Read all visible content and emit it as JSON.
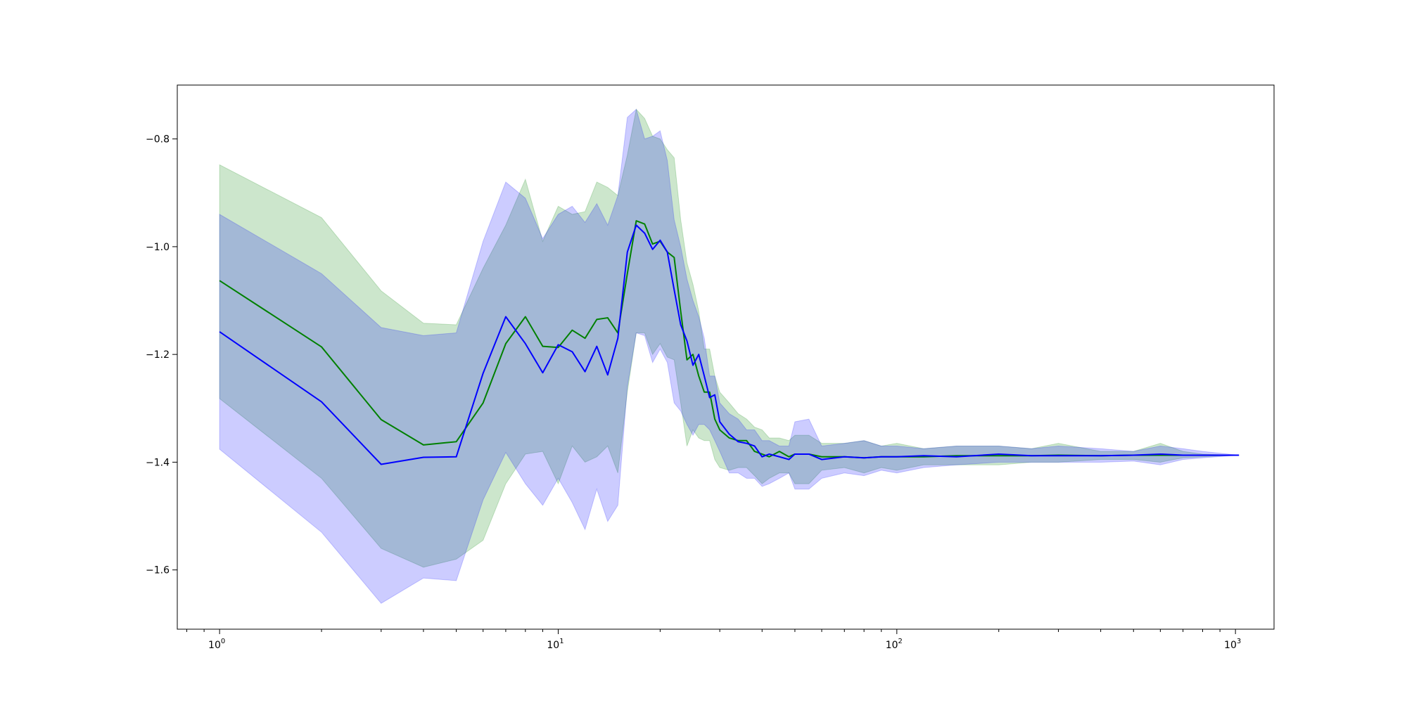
{
  "chart_data": {
    "type": "line",
    "x_scale": "log",
    "xlim": [
      0.75,
      1300
    ],
    "ylim": [
      -1.71,
      -0.7
    ],
    "grid": false,
    "x_ticks": [
      {
        "value": 1,
        "base": "10",
        "exp": "0"
      },
      {
        "value": 10,
        "base": "10",
        "exp": "1"
      },
      {
        "value": 100,
        "base": "10",
        "exp": "2"
      },
      {
        "value": 1000,
        "base": "10",
        "exp": "3"
      }
    ],
    "y_ticks": [
      {
        "value": -0.8,
        "label": "−0.8"
      },
      {
        "value": -1.0,
        "label": "−1.0"
      },
      {
        "value": -1.2,
        "label": "−1.2"
      },
      {
        "value": -1.4,
        "label": "−1.4"
      },
      {
        "value": -1.6,
        "label": "−1.6"
      }
    ],
    "series": [
      {
        "color": "#008000",
        "band_color": "#008000",
        "band_opacity": 0.2,
        "x": [
          1,
          2,
          3,
          4,
          5,
          6,
          7,
          8,
          9,
          10,
          11,
          12,
          13,
          14,
          15,
          16,
          17,
          18,
          19,
          20,
          21,
          22,
          23,
          24,
          25,
          26,
          27,
          28,
          29,
          30,
          32,
          34,
          36,
          38,
          40,
          42,
          45,
          48,
          50,
          55,
          60,
          70,
          80,
          90,
          100,
          120,
          150,
          200,
          250,
          300,
          400,
          500,
          600,
          700,
          800,
          1024
        ],
        "y": [
          -1.063,
          -1.186,
          -1.321,
          -1.368,
          -1.362,
          -1.29,
          -1.18,
          -1.13,
          -1.185,
          -1.187,
          -1.155,
          -1.17,
          -1.135,
          -1.132,
          -1.16,
          -1.05,
          -0.952,
          -0.958,
          -0.995,
          -0.99,
          -1.01,
          -1.02,
          -1.12,
          -1.21,
          -1.2,
          -1.24,
          -1.27,
          -1.27,
          -1.32,
          -1.34,
          -1.355,
          -1.36,
          -1.36,
          -1.38,
          -1.385,
          -1.39,
          -1.38,
          -1.39,
          -1.385,
          -1.385,
          -1.39,
          -1.39,
          -1.392,
          -1.39,
          -1.39,
          -1.39,
          -1.388,
          -1.388,
          -1.388,
          -1.387,
          -1.388,
          -1.387,
          -1.387,
          -1.387,
          -1.387,
          -1.387
        ],
        "upper": [
          -0.848,
          -0.946,
          -1.082,
          -1.142,
          -1.145,
          -1.04,
          -0.96,
          -0.875,
          -0.99,
          -0.925,
          -0.94,
          -0.935,
          -0.88,
          -0.89,
          -0.905,
          -0.83,
          -0.745,
          -0.762,
          -0.795,
          -0.8,
          -0.82,
          -0.835,
          -0.95,
          -1.03,
          -1.07,
          -1.12,
          -1.19,
          -1.19,
          -1.24,
          -1.27,
          -1.29,
          -1.31,
          -1.32,
          -1.335,
          -1.34,
          -1.355,
          -1.355,
          -1.36,
          -1.35,
          -1.35,
          -1.365,
          -1.365,
          -1.36,
          -1.37,
          -1.365,
          -1.375,
          -1.37,
          -1.37,
          -1.375,
          -1.365,
          -1.38,
          -1.38,
          -1.365,
          -1.38,
          -1.385,
          -1.387
        ],
        "lower": [
          -1.282,
          -1.43,
          -1.56,
          -1.595,
          -1.58,
          -1.545,
          -1.44,
          -1.385,
          -1.38,
          -1.44,
          -1.37,
          -1.4,
          -1.39,
          -1.37,
          -1.42,
          -1.27,
          -1.16,
          -1.16,
          -1.2,
          -1.18,
          -1.205,
          -1.21,
          -1.29,
          -1.37,
          -1.34,
          -1.355,
          -1.36,
          -1.36,
          -1.395,
          -1.41,
          -1.415,
          -1.41,
          -1.41,
          -1.425,
          -1.44,
          -1.43,
          -1.42,
          -1.42,
          -1.44,
          -1.44,
          -1.415,
          -1.41,
          -1.42,
          -1.41,
          -1.415,
          -1.405,
          -1.405,
          -1.405,
          -1.4,
          -1.4,
          -1.395,
          -1.395,
          -1.4,
          -1.392,
          -1.39,
          -1.387
        ]
      },
      {
        "color": "#0000ff",
        "band_color": "#0000ff",
        "band_opacity": 0.2,
        "x": [
          1,
          2,
          3,
          4,
          5,
          6,
          7,
          8,
          9,
          10,
          11,
          12,
          13,
          14,
          15,
          16,
          17,
          18,
          19,
          20,
          21,
          22,
          23,
          24,
          25,
          26,
          27,
          28,
          29,
          30,
          32,
          34,
          36,
          38,
          40,
          42,
          45,
          48,
          50,
          55,
          60,
          70,
          80,
          90,
          100,
          120,
          150,
          200,
          250,
          300,
          400,
          500,
          600,
          700,
          800,
          1024
        ],
        "y": [
          -1.158,
          -1.288,
          -1.404,
          -1.391,
          -1.39,
          -1.235,
          -1.13,
          -1.18,
          -1.234,
          -1.182,
          -1.195,
          -1.232,
          -1.185,
          -1.238,
          -1.17,
          -1.01,
          -0.96,
          -0.975,
          -1.005,
          -0.988,
          -1.01,
          -1.08,
          -1.145,
          -1.175,
          -1.22,
          -1.2,
          -1.24,
          -1.28,
          -1.275,
          -1.325,
          -1.348,
          -1.362,
          -1.365,
          -1.37,
          -1.39,
          -1.385,
          -1.39,
          -1.395,
          -1.385,
          -1.385,
          -1.395,
          -1.39,
          -1.392,
          -1.39,
          -1.39,
          -1.388,
          -1.39,
          -1.385,
          -1.388,
          -1.388,
          -1.388,
          -1.387,
          -1.385,
          -1.387,
          -1.387,
          -1.387
        ],
        "upper": [
          -0.94,
          -1.05,
          -1.15,
          -1.165,
          -1.16,
          -0.99,
          -0.88,
          -0.91,
          -0.985,
          -0.94,
          -0.925,
          -0.955,
          -0.92,
          -0.96,
          -0.905,
          -0.76,
          -0.745,
          -0.8,
          -0.795,
          -0.785,
          -0.84,
          -0.95,
          -1.0,
          -1.06,
          -1.1,
          -1.13,
          -1.17,
          -1.24,
          -1.24,
          -1.29,
          -1.31,
          -1.32,
          -1.34,
          -1.34,
          -1.36,
          -1.36,
          -1.37,
          -1.37,
          -1.325,
          -1.32,
          -1.37,
          -1.365,
          -1.36,
          -1.37,
          -1.37,
          -1.375,
          -1.37,
          -1.37,
          -1.375,
          -1.37,
          -1.375,
          -1.38,
          -1.37,
          -1.375,
          -1.38,
          -1.387
        ],
        "lower": [
          -1.376,
          -1.53,
          -1.662,
          -1.615,
          -1.62,
          -1.47,
          -1.382,
          -1.44,
          -1.48,
          -1.43,
          -1.475,
          -1.525,
          -1.45,
          -1.51,
          -1.48,
          -1.26,
          -1.16,
          -1.165,
          -1.215,
          -1.19,
          -1.215,
          -1.29,
          -1.305,
          -1.33,
          -1.35,
          -1.33,
          -1.33,
          -1.34,
          -1.36,
          -1.38,
          -1.42,
          -1.42,
          -1.43,
          -1.43,
          -1.445,
          -1.44,
          -1.43,
          -1.42,
          -1.45,
          -1.45,
          -1.43,
          -1.42,
          -1.425,
          -1.415,
          -1.42,
          -1.41,
          -1.405,
          -1.4,
          -1.4,
          -1.4,
          -1.4,
          -1.398,
          -1.405,
          -1.395,
          -1.392,
          -1.387
        ]
      }
    ]
  }
}
